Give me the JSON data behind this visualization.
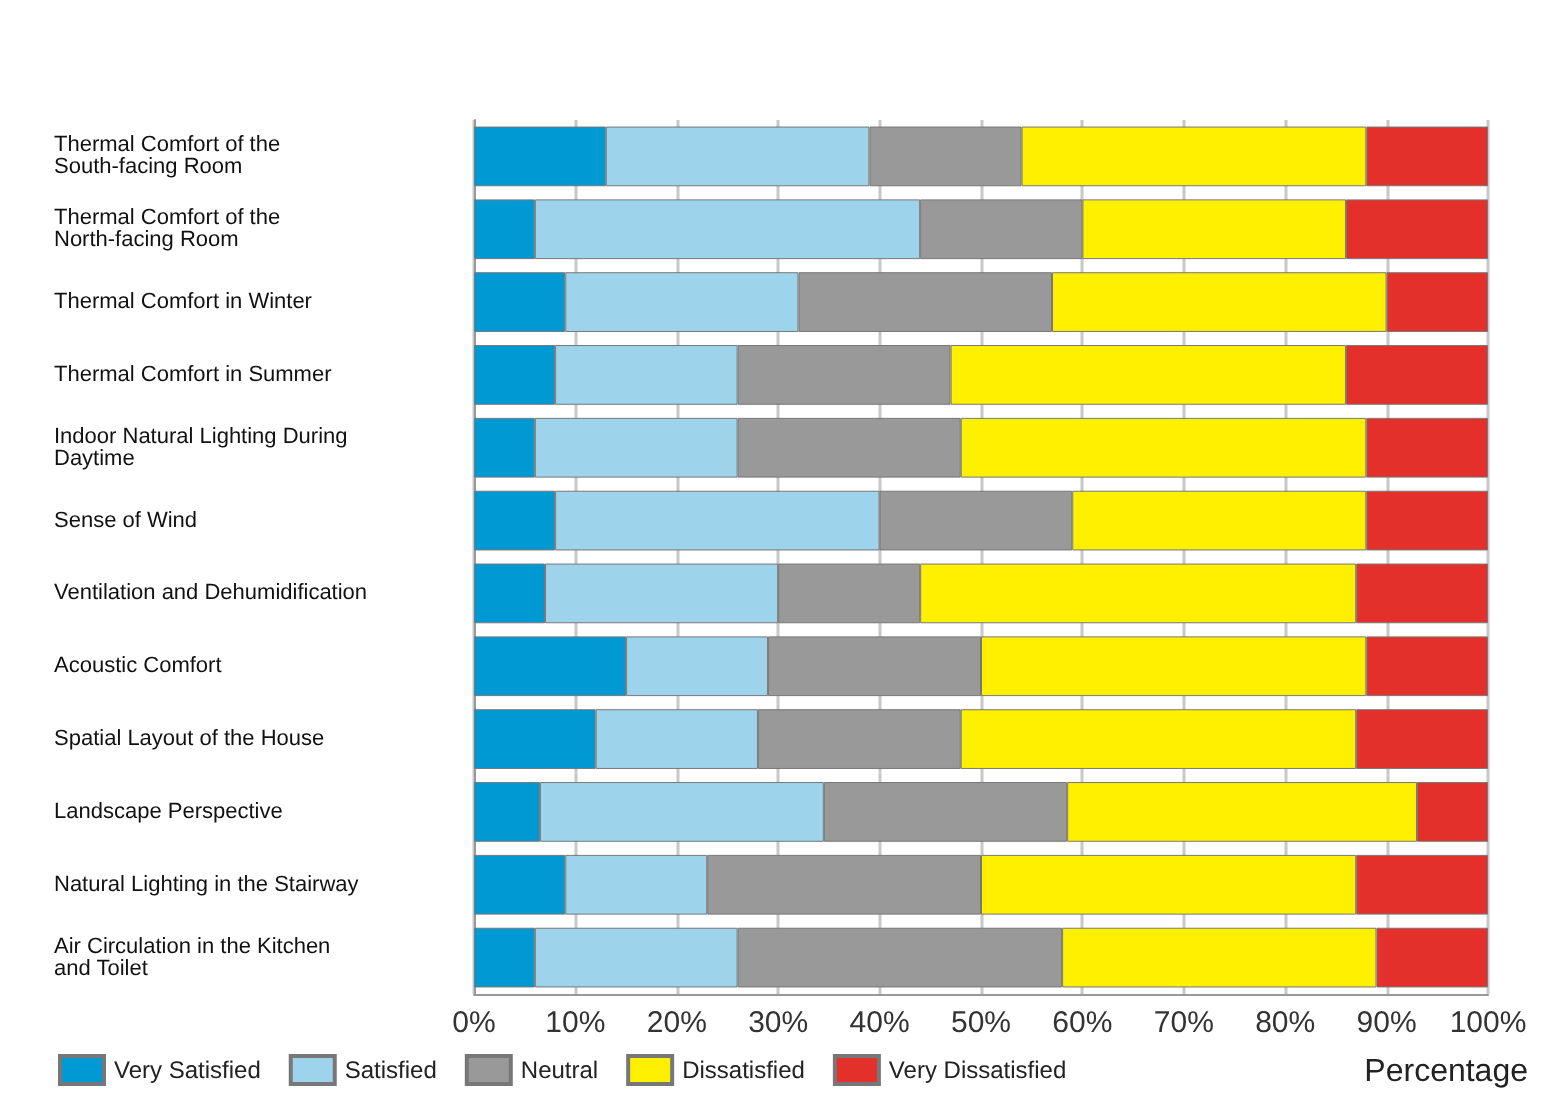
{
  "chart_data": {
    "type": "bar",
    "orientation": "horizontal",
    "stacked": true,
    "xlabel": "Percentage",
    "categories": [
      "Thermal Comfort of the\nSouth-facing Room",
      "Thermal Comfort of the\nNorth-facing Room",
      "Thermal Comfort in Winter",
      "Thermal Comfort in Summer",
      "Indoor Natural Lighting During\nDaytime",
      "Sense of Wind",
      "Ventilation and Dehumidification",
      "Acoustic Comfort",
      "Spatial Layout of the House",
      "Landscape Perspective",
      "Natural Lighting in the Stairway",
      "Air Circulation in the Kitchen\nand Toilet"
    ],
    "series": [
      {
        "name": "Very Satisfied",
        "color": "#0099d4",
        "values": [
          13,
          6,
          9,
          8,
          6,
          8,
          7,
          15,
          12,
          6.5,
          9,
          6
        ]
      },
      {
        "name": "Satisfied",
        "color": "#9ed3ec",
        "values": [
          26,
          38,
          23,
          18,
          20,
          32,
          23,
          14,
          16,
          28,
          14,
          20
        ]
      },
      {
        "name": "Neutral",
        "color": "#999999",
        "values": [
          15,
          16,
          25,
          21,
          22,
          19,
          14,
          21,
          20,
          24,
          27,
          32
        ]
      },
      {
        "name": "Dissatisfied",
        "color": "#fff000",
        "values": [
          34,
          26,
          33,
          39,
          40,
          29,
          43,
          38,
          39,
          34.5,
          37,
          31
        ]
      },
      {
        "name": "Very Dissatisfied",
        "color": "#e3302b",
        "values": [
          12,
          14,
          10,
          14,
          12,
          12,
          13,
          12,
          13,
          7,
          13,
          11
        ]
      }
    ],
    "xlim": [
      0,
      100
    ],
    "xticks": [
      {
        "value": 0,
        "label": "0%"
      },
      {
        "value": 10,
        "label": "10%"
      },
      {
        "value": 20,
        "label": "20%"
      },
      {
        "value": 30,
        "label": "30%"
      },
      {
        "value": 40,
        "label": "40%"
      },
      {
        "value": 50,
        "label": "50%"
      },
      {
        "value": 60,
        "label": "60%"
      },
      {
        "value": 70,
        "label": "70%"
      },
      {
        "value": 80,
        "label": "80%"
      },
      {
        "value": 90,
        "label": "90%"
      },
      {
        "value": 100,
        "label": "100%"
      }
    ],
    "grid": "x",
    "legend": "bottom left"
  }
}
